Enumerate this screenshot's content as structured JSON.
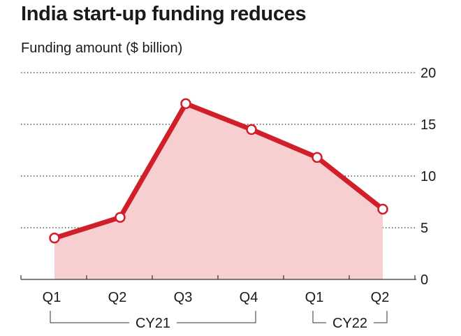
{
  "title": "India start-up funding reduces",
  "subtitle": "Funding amount ($ billion)",
  "colors": {
    "line": "#d11f2a",
    "area": "#f7cfd1",
    "grid": "#333333",
    "text": "#1a1a1a"
  },
  "chart_data": {
    "type": "area",
    "title": "India start-up funding reduces",
    "subtitle": "Funding amount ($ billion)",
    "categories": [
      "Q1",
      "Q2",
      "Q3",
      "Q4",
      "Q1",
      "Q2"
    ],
    "groups": [
      {
        "label": "CY21",
        "from": 0,
        "to": 3
      },
      {
        "label": "CY22",
        "from": 4,
        "to": 5
      }
    ],
    "series": [
      {
        "values": [
          4.0,
          6.0,
          17.0,
          14.5,
          11.8,
          6.8
        ]
      }
    ],
    "ylim": [
      0,
      20
    ],
    "yticks": [
      0,
      5,
      10,
      15,
      20
    ],
    "grid": true,
    "y_axis_side": "right",
    "markers": true
  }
}
